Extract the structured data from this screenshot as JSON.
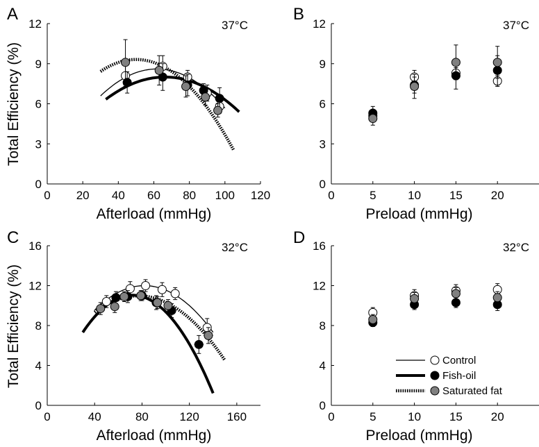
{
  "legend": {
    "items": [
      {
        "label": "Control",
        "fill": "#ffffff",
        "line": "thin"
      },
      {
        "label": "Fish-oil",
        "fill": "#000000",
        "line": "thick"
      },
      {
        "label": "Saturated fat",
        "fill": "#808080",
        "line": "dotted"
      }
    ]
  },
  "chart_data": [
    {
      "type": "scatter",
      "panel": "A",
      "temperature": "37°C",
      "xlabel": "Afterload (mmHg)",
      "ylabel": "Total Efficiency (%)",
      "xlim": [
        0,
        120
      ],
      "ylim": [
        0,
        12
      ],
      "xticks": [
        0,
        20,
        40,
        60,
        80,
        100,
        120
      ],
      "yticks": [
        0,
        3,
        6,
        9,
        12
      ],
      "fits": [
        {
          "style": "thin",
          "x_range": [
            30,
            100
          ],
          "coef": [
            -0.002,
            0.247,
            0.98
          ]
        },
        {
          "style": "thick",
          "x_range": [
            33,
            108
          ],
          "coef": [
            -0.0015,
            0.199,
            1.4
          ]
        },
        {
          "style": "dotted",
          "x_range": [
            30,
            105
          ],
          "coef": [
            -0.00225,
            0.225,
            3.69
          ]
        }
      ],
      "series": [
        {
          "name": "Control",
          "fill": "#ffffff",
          "points": [
            {
              "x": 44,
              "y": 8.1,
              "xerr": 2,
              "yerr": 0.8
            },
            {
              "x": 65,
              "y": 8.8,
              "xerr": 2,
              "yerr": 0.8
            },
            {
              "x": 79,
              "y": 8.0,
              "xerr": 2,
              "yerr": 0.5
            },
            {
              "x": 90,
              "y": 6.8,
              "xerr": 2,
              "yerr": 0.6
            },
            {
              "x": 97,
              "y": 5.8,
              "xerr": 2,
              "yerr": 0.5
            }
          ]
        },
        {
          "name": "Fish-oil",
          "fill": "#000000",
          "points": [
            {
              "x": 45,
              "y": 7.6,
              "xerr": 2,
              "yerr": 0.8
            },
            {
              "x": 65,
              "y": 8.0,
              "xerr": 2,
              "yerr": 1.0
            },
            {
              "x": 79,
              "y": 7.4,
              "xerr": 2,
              "yerr": 0.8
            },
            {
              "x": 88,
              "y": 7.0,
              "xerr": 2,
              "yerr": 0.5
            },
            {
              "x": 97,
              "y": 6.4,
              "xerr": 2,
              "yerr": 0.8
            }
          ]
        },
        {
          "name": "Saturated fat",
          "fill": "#808080",
          "points": [
            {
              "x": 44,
              "y": 9.1,
              "xerr": 2,
              "yerr": 1.7
            },
            {
              "x": 63,
              "y": 8.5,
              "xerr": 2,
              "yerr": 1.1
            },
            {
              "x": 78,
              "y": 7.3,
              "xerr": 2,
              "yerr": 0.8
            },
            {
              "x": 89,
              "y": 6.5,
              "xerr": 2,
              "yerr": 0.6
            },
            {
              "x": 96,
              "y": 5.5,
              "xerr": 2,
              "yerr": 0.5
            }
          ]
        }
      ]
    },
    {
      "type": "scatter",
      "panel": "B",
      "temperature": "37°C",
      "xlabel": "Preload (mmHg)",
      "ylabel": "",
      "xlim": [
        0,
        25
      ],
      "ylim": [
        0,
        12
      ],
      "xticks": [
        0,
        5,
        10,
        15,
        20
      ],
      "yticks": [
        0,
        3,
        6,
        9,
        12
      ],
      "series": [
        {
          "name": "Control",
          "fill": "#ffffff",
          "points": [
            {
              "x": 5,
              "y": 5.1,
              "yerr": 0.3
            },
            {
              "x": 10,
              "y": 8.0,
              "yerr": 0.5
            },
            {
              "x": 15,
              "y": 8.3,
              "yerr": 0.4
            },
            {
              "x": 20,
              "y": 7.7,
              "yerr": 0.4
            }
          ]
        },
        {
          "name": "Fish-oil",
          "fill": "#000000",
          "points": [
            {
              "x": 5,
              "y": 5.3,
              "yerr": 0.5
            },
            {
              "x": 10,
              "y": 7.4,
              "yerr": 0.6
            },
            {
              "x": 15,
              "y": 8.1,
              "yerr": 1.0
            },
            {
              "x": 20,
              "y": 8.5,
              "yerr": 1.1
            }
          ]
        },
        {
          "name": "Saturated fat",
          "fill": "#808080",
          "points": [
            {
              "x": 5,
              "y": 4.9,
              "yerr": 0.5
            },
            {
              "x": 10,
              "y": 7.3,
              "yerr": 0.9
            },
            {
              "x": 15,
              "y": 9.1,
              "yerr": 1.3
            },
            {
              "x": 20,
              "y": 9.1,
              "yerr": 1.2
            }
          ]
        }
      ]
    },
    {
      "type": "scatter",
      "panel": "C",
      "temperature": "32°C",
      "xlabel": "Afterload (mmHg)",
      "ylabel": "Total Efficiency (%)",
      "xlim": [
        0,
        180
      ],
      "ylim": [
        0,
        16
      ],
      "xticks": [
        0,
        40,
        80,
        120,
        160
      ],
      "yticks": [
        0,
        4,
        8,
        12,
        16
      ],
      "fits": [
        {
          "style": "thin",
          "x_range": [
            40,
            140
          ],
          "coef": [
            -0.00139,
            0.228,
            2.65
          ]
        },
        {
          "style": "thick",
          "x_range": [
            30,
            140
          ],
          "coef": [
            -0.00212,
            0.305,
            0.07
          ]
        },
        {
          "style": "dotted",
          "x_range": [
            40,
            150
          ],
          "coef": [
            -0.00121,
            0.186,
            3.83
          ]
        }
      ],
      "series": [
        {
          "name": "Control",
          "fill": "#ffffff",
          "points": [
            {
              "x": 50,
              "y": 10.4,
              "xerr": 3,
              "yerr": 0.6
            },
            {
              "x": 70,
              "y": 11.7,
              "xerr": 3,
              "yerr": 0.7
            },
            {
              "x": 83,
              "y": 12.0,
              "xerr": 3,
              "yerr": 0.6
            },
            {
              "x": 97,
              "y": 11.6,
              "xerr": 3,
              "yerr": 0.7
            },
            {
              "x": 108,
              "y": 11.2,
              "xerr": 3,
              "yerr": 0.6
            },
            {
              "x": 135,
              "y": 7.8,
              "xerr": 3,
              "yerr": 0.9
            }
          ]
        },
        {
          "name": "Fish-oil",
          "fill": "#000000",
          "points": [
            {
              "x": 58,
              "y": 10.8,
              "xerr": 3,
              "yerr": 0.6
            },
            {
              "x": 68,
              "y": 10.9,
              "xerr": 3,
              "yerr": 0.6
            },
            {
              "x": 80,
              "y": 11.0,
              "xerr": 3,
              "yerr": 0.5
            },
            {
              "x": 92,
              "y": 10.3,
              "xerr": 3,
              "yerr": 0.7
            },
            {
              "x": 105,
              "y": 9.5,
              "xerr": 3,
              "yerr": 0.7
            },
            {
              "x": 128,
              "y": 6.1,
              "xerr": 4,
              "yerr": 0.9
            }
          ]
        },
        {
          "name": "Saturated fat",
          "fill": "#808080",
          "points": [
            {
              "x": 45,
              "y": 9.7,
              "xerr": 3,
              "yerr": 0.6
            },
            {
              "x": 57,
              "y": 9.9,
              "xerr": 3,
              "yerr": 0.6
            },
            {
              "x": 65,
              "y": 10.9,
              "xerr": 3,
              "yerr": 0.5
            },
            {
              "x": 79,
              "y": 11.0,
              "xerr": 3,
              "yerr": 0.5
            },
            {
              "x": 93,
              "y": 10.3,
              "xerr": 3,
              "yerr": 0.6
            },
            {
              "x": 102,
              "y": 10.0,
              "xerr": 3,
              "yerr": 0.6
            },
            {
              "x": 136,
              "y": 7.0,
              "xerr": 4,
              "yerr": 0.8
            }
          ]
        }
      ]
    },
    {
      "type": "scatter",
      "panel": "D",
      "temperature": "32°C",
      "xlabel": "Preload (mmHg)",
      "ylabel": "",
      "xlim": [
        0,
        25
      ],
      "ylim": [
        0,
        16
      ],
      "xticks": [
        0,
        5,
        10,
        15,
        20
      ],
      "yticks": [
        0,
        4,
        8,
        12,
        16
      ],
      "series": [
        {
          "name": "Control",
          "fill": "#ffffff",
          "points": [
            {
              "x": 5,
              "y": 9.3,
              "yerr": 0.5
            },
            {
              "x": 10,
              "y": 11.0,
              "yerr": 0.6
            },
            {
              "x": 15,
              "y": 11.5,
              "yerr": 0.6
            },
            {
              "x": 20,
              "y": 11.6,
              "yerr": 0.6
            }
          ]
        },
        {
          "name": "Fish-oil",
          "fill": "#000000",
          "points": [
            {
              "x": 5,
              "y": 8.3,
              "yerr": 0.4
            },
            {
              "x": 10,
              "y": 10.1,
              "yerr": 0.5
            },
            {
              "x": 15,
              "y": 10.3,
              "yerr": 0.5
            },
            {
              "x": 20,
              "y": 10.1,
              "yerr": 0.6
            }
          ]
        },
        {
          "name": "Saturated fat",
          "fill": "#808080",
          "points": [
            {
              "x": 5,
              "y": 8.6,
              "yerr": 0.5
            },
            {
              "x": 10,
              "y": 10.7,
              "yerr": 0.6
            },
            {
              "x": 15,
              "y": 11.2,
              "yerr": 0.6
            },
            {
              "x": 20,
              "y": 10.8,
              "yerr": 0.6
            }
          ]
        }
      ]
    }
  ]
}
